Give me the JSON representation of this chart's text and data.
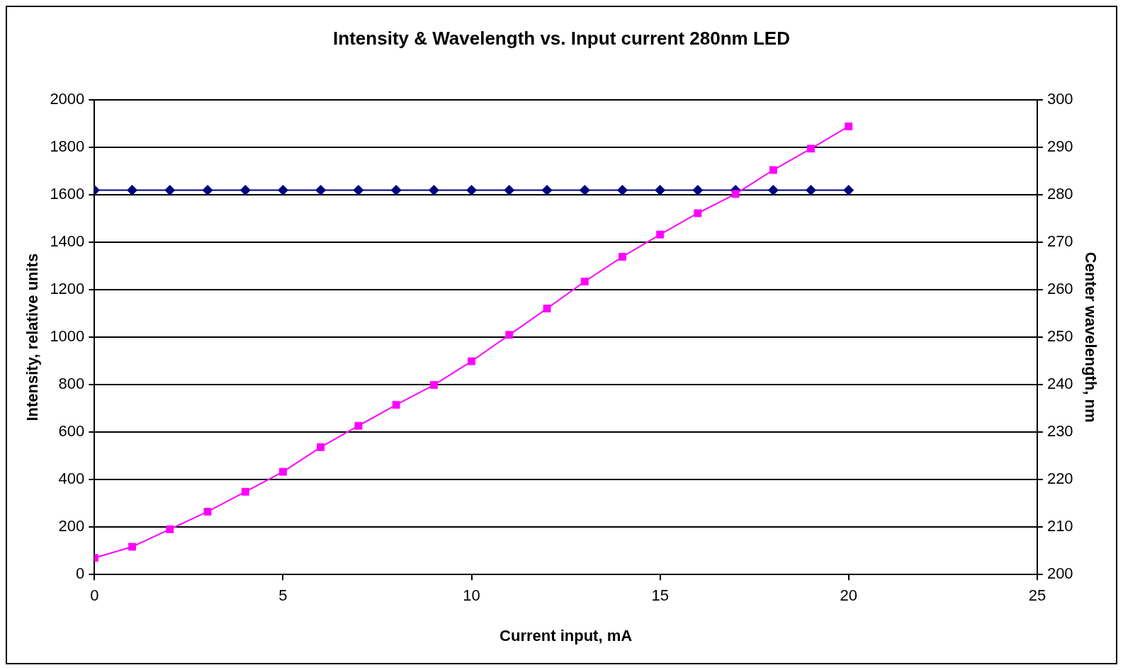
{
  "chart_data": {
    "type": "line",
    "title": "Intensity & Wavelength vs. Input current 280nm LED",
    "xlabel": "Current input, mA",
    "ylabel": "Intensity, relative units",
    "y2label": "Center wavelength, nm",
    "x": [
      0,
      1,
      2,
      3,
      4,
      5,
      6,
      7,
      8,
      9,
      10,
      11,
      12,
      13,
      14,
      15,
      16,
      17,
      18,
      19,
      20
    ],
    "xlim": [
      0,
      25
    ],
    "xticks": [
      0,
      5,
      10,
      15,
      20,
      25
    ],
    "ylim": [
      0,
      2000
    ],
    "yticks": [
      0,
      200,
      400,
      600,
      800,
      1000,
      1200,
      1400,
      1600,
      1800,
      2000
    ],
    "y2lim": [
      200,
      300
    ],
    "y2ticks": [
      200,
      210,
      220,
      230,
      240,
      250,
      260,
      270,
      280,
      290,
      300
    ],
    "grid": "y",
    "series": [
      {
        "color": "#000080",
        "marker": "diamond",
        "axis": "y2",
        "values": [
          281,
          281,
          281,
          281,
          281,
          281,
          281,
          281,
          281,
          281,
          281,
          281,
          281,
          281,
          281,
          281,
          281,
          281,
          281,
          281,
          281
        ]
      },
      {
        "color": "#ff00ff",
        "marker": "square",
        "values": [
          70,
          117,
          191,
          265,
          349,
          433,
          537,
          627,
          715,
          799,
          899,
          1010,
          1121,
          1235,
          1339,
          1433,
          1523,
          1604,
          1705,
          1795,
          1889
        ]
      }
    ]
  }
}
